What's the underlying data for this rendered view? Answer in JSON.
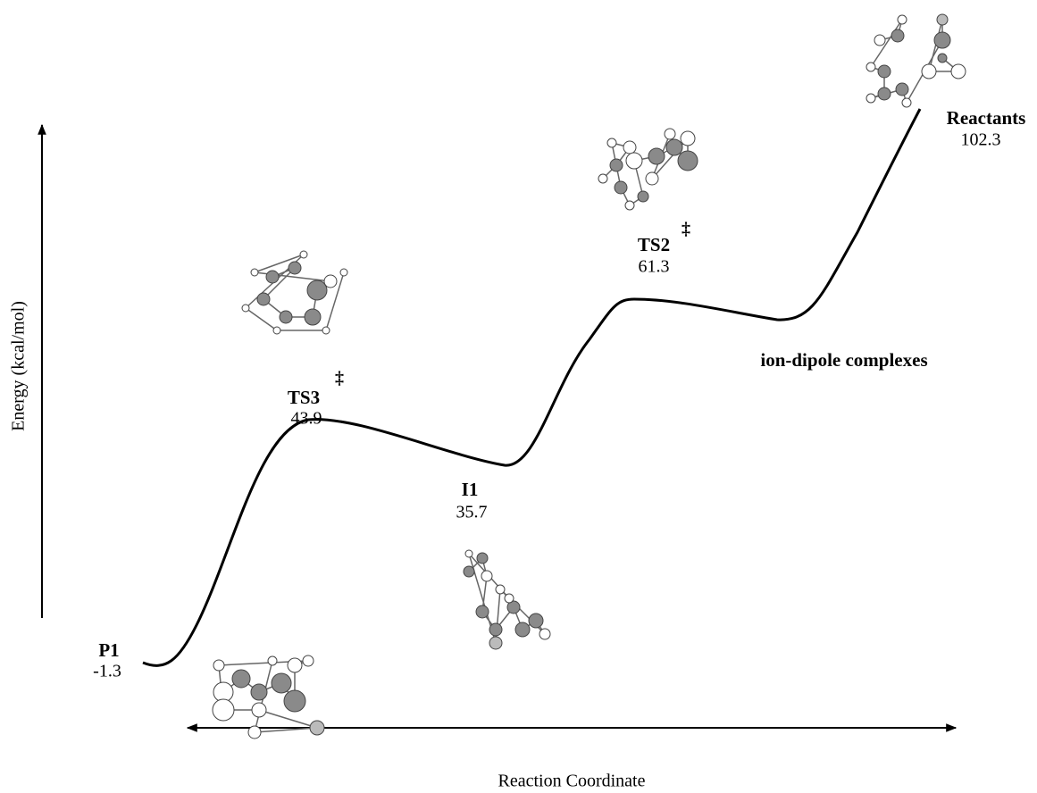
{
  "axes": {
    "y_label": "Energy (kcal/mol)",
    "x_label": "Reaction Coordinate"
  },
  "points": [
    {
      "label": "P1",
      "energy": -1.3
    },
    {
      "label": "TS3",
      "marker": "‡",
      "energy": 43.9
    },
    {
      "label": "I1",
      "energy": 35.7
    },
    {
      "label": "TS2",
      "marker": "‡",
      "energy": 61.3
    },
    {
      "label": "Reactants",
      "energy": 102.3
    }
  ],
  "annotation": "ion-dipole complexes"
}
